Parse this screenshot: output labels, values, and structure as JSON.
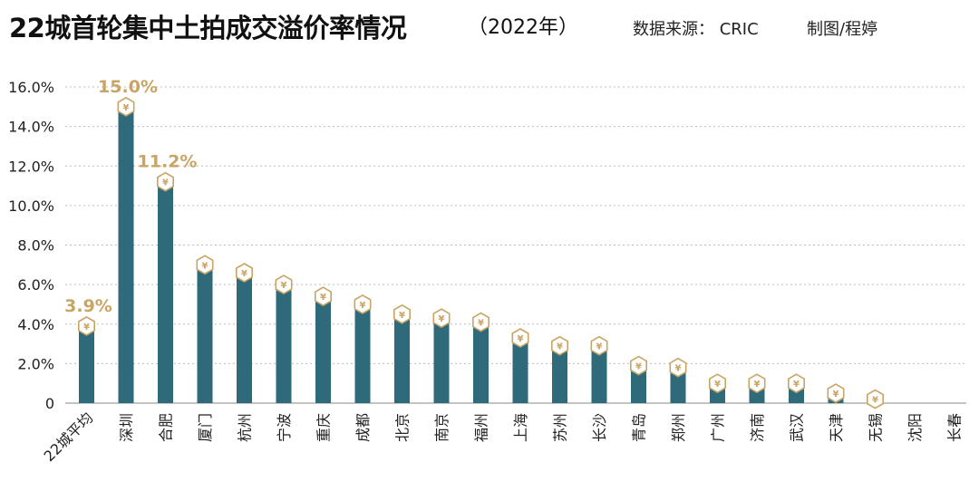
{
  "header": {
    "title": "22城首轮集中土拍成交溢价率情况",
    "subtitle": "（2022年）",
    "source": "数据来源：  CRIC",
    "author": "制图/程婷"
  },
  "colors": {
    "bar": "#2e6a7a",
    "label": "#c9a463",
    "badge_fill": "#ffffff",
    "badge_stroke": "#c9a463",
    "grid": "#bdbdbd",
    "text": "#222222"
  },
  "chart_data": {
    "type": "bar",
    "title": "22城首轮集中土拍成交溢价率情况",
    "categories": [
      "22城平均",
      "深圳",
      "合肥",
      "厦门",
      "杭州",
      "宁波",
      "重庆",
      "成都",
      "北京",
      "南京",
      "福州",
      "上海",
      "苏州",
      "长沙",
      "青岛",
      "郑州",
      "广州",
      "济南",
      "武汉",
      "天津",
      "无锡",
      "沈阳",
      "长春"
    ],
    "values": [
      3.9,
      15.0,
      11.2,
      7.0,
      6.6,
      6.0,
      5.4,
      5.0,
      4.5,
      4.3,
      4.1,
      3.3,
      2.9,
      2.9,
      1.9,
      1.8,
      1.0,
      1.0,
      1.0,
      0.5,
      0.2,
      0,
      0
    ],
    "data_labels": {
      "0": "3.9%",
      "1": "15.0%",
      "2": "11.2%"
    },
    "y_ticks": [
      "0",
      "2.0%",
      "4.0%",
      "6.0%",
      "8.0%",
      "10.0%",
      "12.0%",
      "14.0%",
      "16.0%"
    ],
    "ylim": [
      0,
      16
    ],
    "xlabel": "",
    "ylabel": "",
    "grid": true,
    "badge_symbol": "¥"
  }
}
